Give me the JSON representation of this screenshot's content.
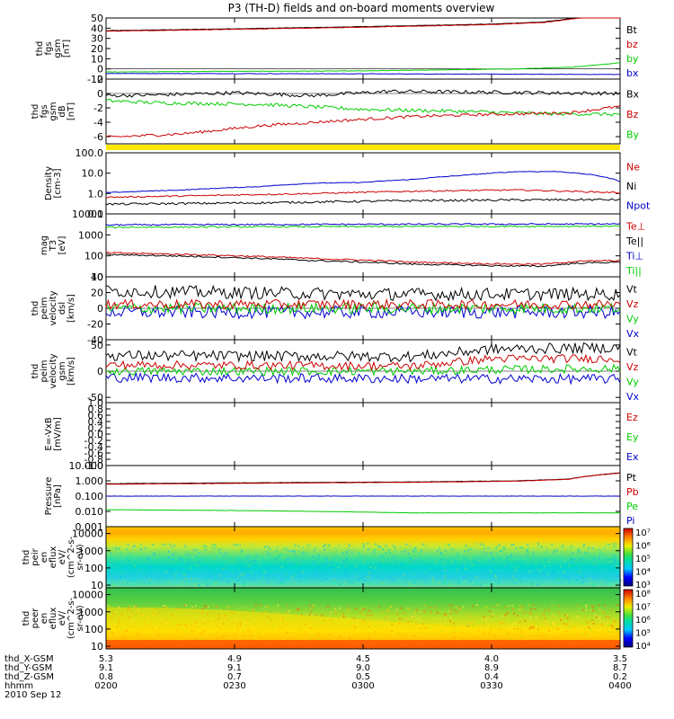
{
  "title": "P3 (TH-D) fields and on-board moments overview",
  "chart_data": {
    "type": "line",
    "title": "P3 (TH-D) fields and on-board moments overview",
    "x_ticks": [
      "0200",
      "0230",
      "0300",
      "0330",
      "0400"
    ],
    "footer": {
      "rows": [
        {
          "label": "thd_X-GSM",
          "values": [
            "5.3",
            "4.9",
            "4.5",
            "4.0",
            "3.5"
          ]
        },
        {
          "label": "thd_Y-GSM",
          "values": [
            "9.1",
            "9.1",
            "9.0",
            "8.9",
            "8.7"
          ]
        },
        {
          "label": "thd_Z-GSM",
          "values": [
            "0.8",
            "0.7",
            "0.5",
            "0.4",
            "0.2"
          ]
        },
        {
          "label": "hhmm",
          "values": [
            "0200",
            "0230",
            "0300",
            "0330",
            "0400"
          ]
        }
      ],
      "date": "2010 Sep 12"
    },
    "panels": [
      {
        "id": "fgs",
        "ylabel": [
          "thd",
          "fgs",
          "gsm",
          "[nT]"
        ],
        "ylim": [
          -10,
          50
        ],
        "yticks": [
          "50",
          "40",
          "30",
          "20",
          "10",
          "0",
          "-10"
        ],
        "tickvals": [
          50,
          40,
          30,
          20,
          10,
          0,
          -10
        ],
        "legend": [
          {
            "name": "Bt",
            "color": "#000000"
          },
          {
            "name": "bz",
            "color": "#cc0000"
          },
          {
            "name": "by",
            "color": "#00cc00"
          },
          {
            "name": "bx",
            "color": "#0000cc"
          }
        ],
        "series": [
          {
            "name": "Bt",
            "color": "#000000",
            "noise": 0.2,
            "x": [
              0,
              20,
              45,
              75,
              85,
              93,
              100
            ],
            "y": [
              37.5,
              39,
              41,
              44,
              46,
              51,
              53
            ]
          },
          {
            "name": "bz",
            "color": "#cc0000",
            "noise": 0.2,
            "x": [
              0,
              20,
              45,
              75,
              85,
              93,
              100
            ],
            "y": [
              37,
              38.5,
              40.5,
              43.5,
              45.5,
              50.5,
              52.5
            ]
          },
          {
            "name": "by",
            "color": "#00cc00",
            "noise": 0.2,
            "x": [
              0,
              20,
              50,
              80,
              90,
              100
            ],
            "y": [
              -3,
              -2.5,
              -2,
              0,
              1.5,
              6
            ]
          },
          {
            "name": "bx",
            "color": "#0000cc",
            "noise": 0.2,
            "x": [
              0,
              50,
              100
            ],
            "y": [
              -4.5,
              -4.8,
              -5.5
            ]
          }
        ]
      },
      {
        "id": "fgs-dB",
        "ylabel": [
          "thd",
          "fgs",
          "gsm",
          "dB",
          "[nT]"
        ],
        "ylim": [
          -7,
          2
        ],
        "yticks": [
          "2",
          "0",
          "-2",
          "-4",
          "-6"
        ],
        "tickvals": [
          2,
          0,
          -2,
          -4,
          -6
        ],
        "legend": [
          {
            "name": "Bx",
            "color": "#000000"
          },
          {
            "name": "Bz",
            "color": "#cc0000"
          },
          {
            "name": "By",
            "color": "#00cc00"
          }
        ],
        "series": [
          {
            "name": "Bx",
            "color": "#000000",
            "noise": 0.25,
            "x": [
              0,
              10,
              25,
              40,
              55,
              70,
              85,
              100
            ],
            "y": [
              -0.3,
              -0.2,
              0.1,
              -0.3,
              0.3,
              0.2,
              0.1,
              0
            ]
          },
          {
            "name": "By",
            "color": "#00cc00",
            "noise": 0.25,
            "x": [
              0,
              10,
              30,
              50,
              70,
              85,
              100
            ],
            "y": [
              -1,
              -1.3,
              -1.5,
              -2.2,
              -2.5,
              -2.8,
              -2.9
            ]
          },
          {
            "name": "Bz",
            "color": "#cc0000",
            "noise": 0.2,
            "x": [
              0,
              15,
              30,
              45,
              60,
              75,
              90,
              100
            ],
            "y": [
              -6.1,
              -5.6,
              -4.5,
              -3.8,
              -3.2,
              -2.9,
              -2.7,
              -1.8
            ]
          }
        ]
      },
      {
        "id": "density",
        "ylabel": [
          "Density",
          "[cm-3]"
        ],
        "ylog": true,
        "ylim": [
          0.1,
          100
        ],
        "yticks": [
          "100.0",
          "10.0",
          "1.0",
          "0.1"
        ],
        "tickvals": [
          100,
          10,
          1,
          0.1
        ],
        "legend": [
          {
            "name": "Ne",
            "color": "#cc0000"
          },
          {
            "name": "Ni",
            "color": "#000000"
          },
          {
            "name": "Npot",
            "color": "#0000cc"
          }
        ],
        "series": [
          {
            "name": "Npot",
            "color": "#0000cc",
            "noise": 0.01,
            "x": [
              0,
              15,
              30,
              40,
              50,
              60,
              70,
              80,
              88,
              95,
              100
            ],
            "y": [
              1.1,
              1.5,
              2.2,
              3.2,
              3.5,
              5,
              8,
              12,
              12,
              8,
              4
            ]
          },
          {
            "name": "Ne",
            "color": "#cc0000",
            "noise": 0.02,
            "x": [
              0,
              20,
              40,
              60,
              80,
              95,
              100
            ],
            "y": [
              0.65,
              0.8,
              1.0,
              1.3,
              1.5,
              1.2,
              1.1
            ]
          },
          {
            "name": "Ni",
            "color": "#000000",
            "noise": 0.03,
            "x": [
              0,
              30,
              60,
              90,
              100
            ],
            "y": [
              0.3,
              0.35,
              0.45,
              0.5,
              0.5
            ]
          }
        ]
      },
      {
        "id": "temperature",
        "ylabel": [
          "mag",
          "T3",
          "[eV]"
        ],
        "ylog": true,
        "ylim": [
          10,
          10000
        ],
        "yticks": [
          "10000",
          "1000",
          "100",
          "10"
        ],
        "tickvals": [
          10000,
          1000,
          100,
          10
        ],
        "legend": [
          {
            "name": "Te⊥",
            "color": "#cc0000"
          },
          {
            "name": "Te||",
            "color": "#000000"
          },
          {
            "name": "Ti⊥",
            "color": "#0000cc"
          },
          {
            "name": "Ti||",
            "color": "#00cc00"
          }
        ],
        "series": [
          {
            "name": "Ti⊥",
            "color": "#0000cc",
            "noise": 0.02,
            "x": [
              0,
              50,
              100
            ],
            "y": [
              3000,
              3200,
              3300
            ]
          },
          {
            "name": "Ti||",
            "color": "#00cc00",
            "noise": 0.02,
            "x": [
              0,
              50,
              100
            ],
            "y": [
              2300,
              2500,
              2600
            ]
          },
          {
            "name": "Te⊥",
            "color": "#cc0000",
            "noise": 0.02,
            "x": [
              0,
              20,
              40,
              60,
              75,
              85,
              92,
              100
            ],
            "y": [
              140,
              110,
              75,
              50,
              42,
              40,
              55,
              60
            ]
          },
          {
            "name": "Te||",
            "color": "#000000",
            "noise": 0.02,
            "x": [
              0,
              20,
              40,
              60,
              75,
              85,
              92,
              100
            ],
            "y": [
              115,
              90,
              60,
              40,
              34,
              32,
              45,
              50
            ]
          }
        ]
      },
      {
        "id": "peim-dsl",
        "ylabel": [
          "thd",
          "peim",
          "velocity",
          "dsl",
          "[km/s]"
        ],
        "ylim": [
          -40,
          40
        ],
        "yticks": [
          "40",
          "20",
          "0",
          "-20",
          "-40"
        ],
        "tickvals": [
          40,
          20,
          0,
          -20,
          -40
        ],
        "legend": [
          {
            "name": "Vt",
            "color": "#000000"
          },
          {
            "name": "Vz",
            "color": "#cc0000"
          },
          {
            "name": "Vy",
            "color": "#00cc00"
          },
          {
            "name": "Vx",
            "color": "#0000cc"
          }
        ],
        "series": [
          {
            "name": "Vx",
            "color": "#0000cc",
            "noise": 8,
            "x": [
              0,
              50,
              100
            ],
            "y": [
              -5,
              -5,
              -5
            ]
          },
          {
            "name": "Vy",
            "color": "#00cc00",
            "noise": 7,
            "x": [
              0,
              50,
              100
            ],
            "y": [
              0,
              0,
              0
            ]
          },
          {
            "name": "Vt",
            "color": "#000000",
            "noise": 8,
            "x": [
              0,
              50,
              100
            ],
            "y": [
              22,
              18,
              18
            ]
          },
          {
            "name": "Vz",
            "color": "#cc0000",
            "noise": 6,
            "x": [
              0,
              50,
              100
            ],
            "y": [
              5,
              5,
              5
            ]
          }
        ]
      },
      {
        "id": "peim-gsm",
        "ylabel": [
          "thd",
          "peim",
          "velocity",
          "gsm",
          "[km/s]"
        ],
        "ylim": [
          -60,
          60
        ],
        "yticks": [
          "50",
          "0",
          "-50"
        ],
        "tickvals": [
          50,
          0,
          -50
        ],
        "legend": [
          {
            "name": "Vt",
            "color": "#000000"
          },
          {
            "name": "Vz",
            "color": "#cc0000"
          },
          {
            "name": "Vy",
            "color": "#00cc00"
          },
          {
            "name": "Vx",
            "color": "#0000cc"
          }
        ],
        "series": [
          {
            "name": "Vx",
            "color": "#0000cc",
            "noise": 9,
            "x": [
              0,
              50,
              100
            ],
            "y": [
              -12,
              -14,
              -15
            ]
          },
          {
            "name": "Vy",
            "color": "#00cc00",
            "noise": 8,
            "x": [
              0,
              60,
              75,
              100
            ],
            "y": [
              0,
              0,
              3,
              5
            ]
          },
          {
            "name": "Vt",
            "color": "#000000",
            "noise": 10,
            "x": [
              0,
              60,
              75,
              100
            ],
            "y": [
              30,
              28,
              42,
              45
            ]
          },
          {
            "name": "Vz",
            "color": "#cc0000",
            "noise": 8,
            "x": [
              0,
              60,
              75,
              100
            ],
            "y": [
              12,
              10,
              24,
              24
            ]
          }
        ]
      },
      {
        "id": "efield",
        "ylabel": [
          "E=-VxB",
          "[mV/m]"
        ],
        "ylim": [
          -1,
          1
        ],
        "yticks": [
          "1.0",
          "0.8",
          "0.6",
          "0.4",
          "0.2",
          "0.0",
          "-0.2",
          "-0.4",
          "-0.6",
          "-0.8",
          "-1.0"
        ],
        "tickvals": [
          1,
          0.8,
          0.6,
          0.4,
          0.2,
          0,
          -0.2,
          -0.4,
          -0.6,
          -0.8,
          -1
        ],
        "legend": [
          {
            "name": "Ez",
            "color": "#cc0000"
          },
          {
            "name": "Ey",
            "color": "#00cc00"
          },
          {
            "name": "Ex",
            "color": "#0000cc"
          }
        ],
        "series": []
      },
      {
        "id": "pressure",
        "ylabel": [
          "Pressure",
          "[nPa]"
        ],
        "ylog": true,
        "ylim": [
          0.001,
          10
        ],
        "yticks": [
          "10.000",
          "1.000",
          "0.100",
          "0.010",
          "0.001"
        ],
        "tickvals": [
          10,
          1,
          0.1,
          0.01,
          0.001
        ],
        "legend": [
          {
            "name": "Pt",
            "color": "#000000"
          },
          {
            "name": "Pb",
            "color": "#cc0000"
          },
          {
            "name": "Pe",
            "color": "#00cc00"
          },
          {
            "name": "Pi",
            "color": "#0000cc"
          }
        ],
        "series": [
          {
            "name": "Pi",
            "color": "#0000cc",
            "noise": 0.005,
            "x": [
              0,
              50,
              100
            ],
            "y": [
              0.1,
              0.1,
              0.1
            ]
          },
          {
            "name": "Pe",
            "color": "#00cc00",
            "noise": 0.004,
            "x": [
              0,
              30,
              60,
              100
            ],
            "y": [
              0.013,
              0.011,
              0.008,
              0.008
            ]
          },
          {
            "name": "Pt",
            "color": "#000000",
            "noise": 0.005,
            "x": [
              0,
              30,
              60,
              80,
              90,
              100
            ],
            "y": [
              0.65,
              0.75,
              0.85,
              1.0,
              1.3,
              3.3
            ]
          },
          {
            "name": "Pb",
            "color": "#cc0000",
            "noise": 0.005,
            "x": [
              0,
              30,
              60,
              80,
              90,
              100
            ],
            "y": [
              0.6,
              0.7,
              0.8,
              0.95,
              1.25,
              3.2
            ]
          }
        ]
      },
      {
        "id": "peir-spec",
        "spectrogram": "ion",
        "ylabel": [
          "thd",
          "peir",
          "en",
          "eflux",
          "eV/",
          "(cm^2-s-",
          "sr-eV)"
        ],
        "ylog": true,
        "ylim": [
          7,
          25000
        ],
        "yticks": [
          "10000",
          "1000",
          "100",
          "10"
        ],
        "tickvals": [
          10000,
          1000,
          100,
          10
        ],
        "colorbar": {
          "labels": [
            "10⁷",
            "10⁶",
            "10⁵",
            "10⁴",
            "10³"
          ]
        }
      },
      {
        "id": "peer-spec",
        "spectrogram": "electron",
        "ylabel": [
          "thd",
          "peer",
          "en",
          "eflux",
          "eV/",
          "(cm^2-s-",
          "sr-eV)"
        ],
        "ylog": true,
        "ylim": [
          7,
          25000
        ],
        "yticks": [
          "10000",
          "1000",
          "100",
          "10"
        ],
        "tickvals": [
          10000,
          1000,
          100,
          10
        ],
        "colorbar": {
          "labels": [
            "10⁸",
            "10⁷",
            "10⁶",
            "10⁵",
            "10⁴"
          ]
        }
      }
    ]
  }
}
